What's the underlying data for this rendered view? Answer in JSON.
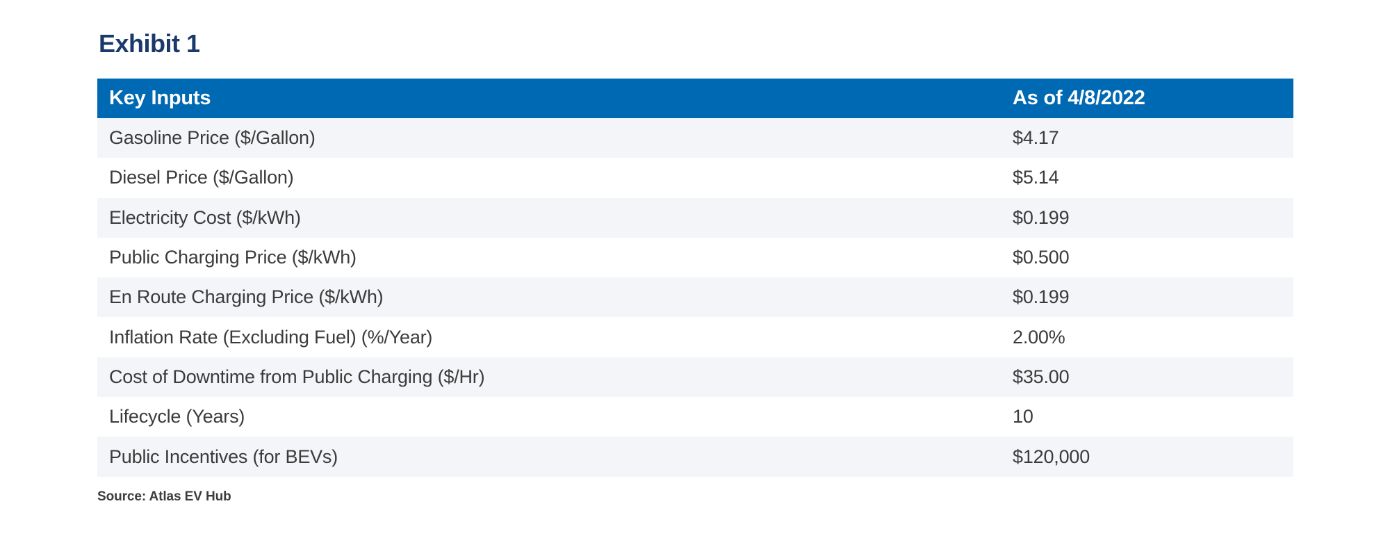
{
  "exhibit_title": "Exhibit 1",
  "table": {
    "header": {
      "label": "Key Inputs",
      "value": "As of 4/8/2022"
    },
    "rows": [
      {
        "label": "Gasoline Price ($/Gallon)",
        "value": "$4.17"
      },
      {
        "label": "Diesel Price ($/Gallon)",
        "value": "$5.14"
      },
      {
        "label": "Electricity Cost ($/kWh)",
        "value": "$0.199"
      },
      {
        "label": "Public Charging Price ($/kWh)",
        "value": "$0.500"
      },
      {
        "label": "En Route Charging Price ($/kWh)",
        "value": "$0.199"
      },
      {
        "label": "Inflation Rate (Excluding Fuel) (%/Year)",
        "value": "2.00%"
      },
      {
        "label": "Cost of Downtime from Public Charging ($/Hr)",
        "value": "$35.00"
      },
      {
        "label": "Lifecycle (Years)",
        "value": "10"
      },
      {
        "label": "Public Incentives (for BEVs)",
        "value": "$120,000"
      }
    ]
  },
  "source_note": "Source: Atlas EV Hub",
  "colors": {
    "header_bg": "#0069B4",
    "header_text": "#FFFFFF",
    "row_alt_bg": "#F4F5F8",
    "row_bg": "#FFFFFF",
    "body_text": "#3B3B3B",
    "title_text": "#1B3A6B",
    "source_text": "#3D3D3D",
    "page_bg": "#FFFFFF"
  }
}
